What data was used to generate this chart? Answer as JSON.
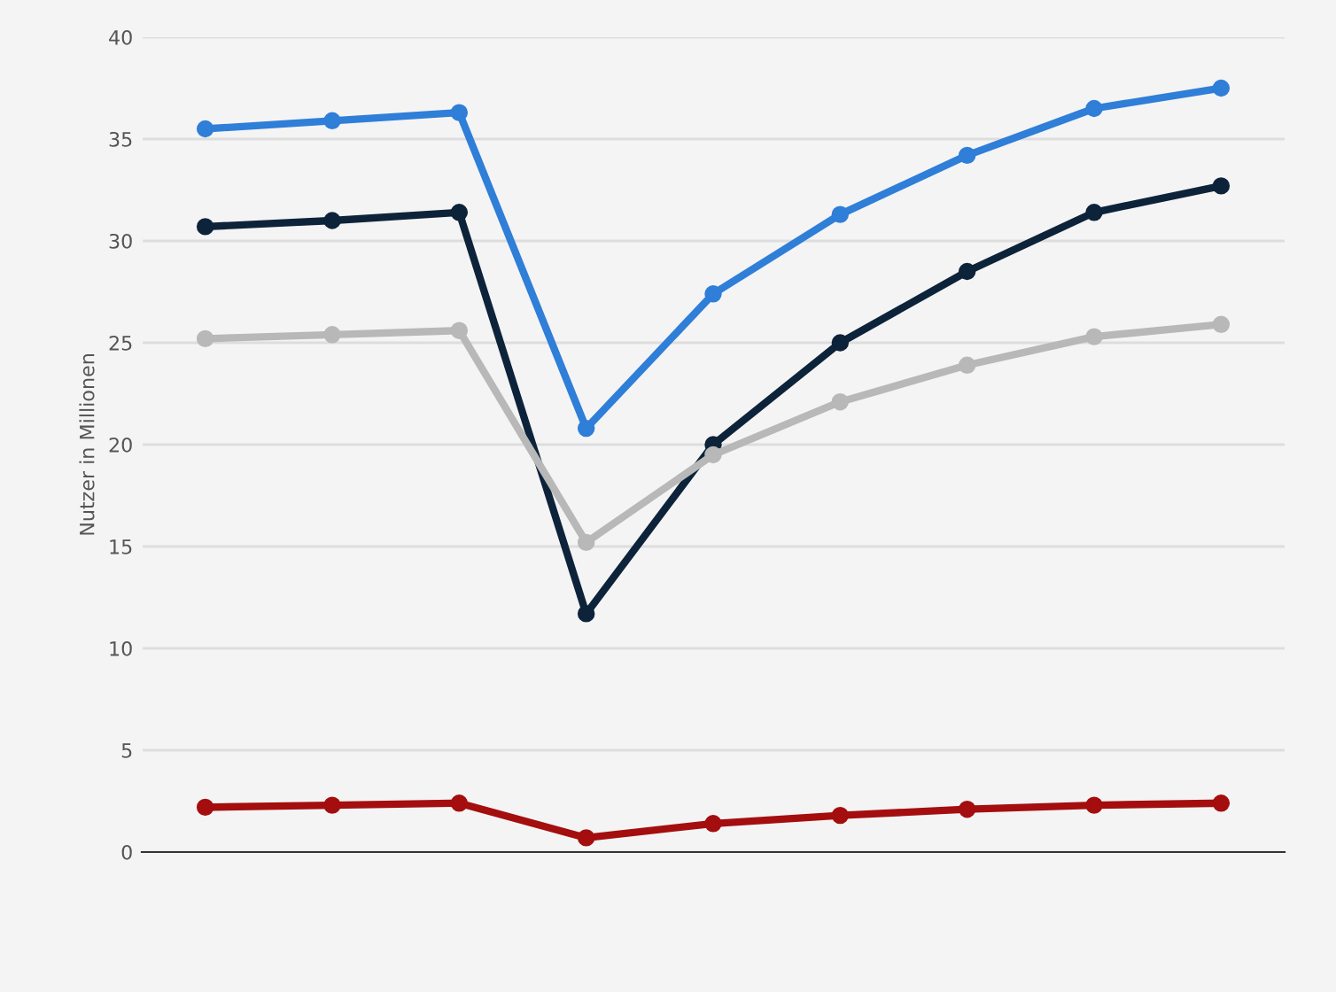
{
  "chart_data": {
    "type": "line",
    "ylabel": "Nutzer in Millionen",
    "categories": [
      null,
      null,
      null,
      null,
      null,
      null,
      null,
      null,
      null
    ],
    "series": [
      {
        "color": "#2f7ed8",
        "values": [
          35.5,
          35.9,
          36.3,
          20.8,
          27.4,
          31.3,
          34.2,
          36.5,
          37.5
        ]
      },
      {
        "color": "#0d233a",
        "values": [
          30.7,
          31.0,
          31.4,
          11.7,
          20.0,
          25.0,
          28.5,
          31.4,
          32.7
        ]
      },
      {
        "color": "#b8b8b8",
        "values": [
          25.2,
          25.4,
          25.6,
          15.2,
          19.5,
          22.1,
          23.9,
          25.3,
          25.9
        ]
      },
      {
        "color": "#a40e0e",
        "values": [
          2.2,
          2.3,
          2.4,
          0.7,
          1.4,
          1.8,
          2.1,
          2.3,
          2.4
        ]
      }
    ],
    "ylim": [
      0,
      40
    ],
    "yticks": [
      0,
      5,
      10,
      15,
      20,
      25,
      30,
      35,
      40
    ],
    "grid": "y",
    "tick_labels": "y",
    "marker": "circle",
    "line_style": "solid",
    "legend": false
  }
}
